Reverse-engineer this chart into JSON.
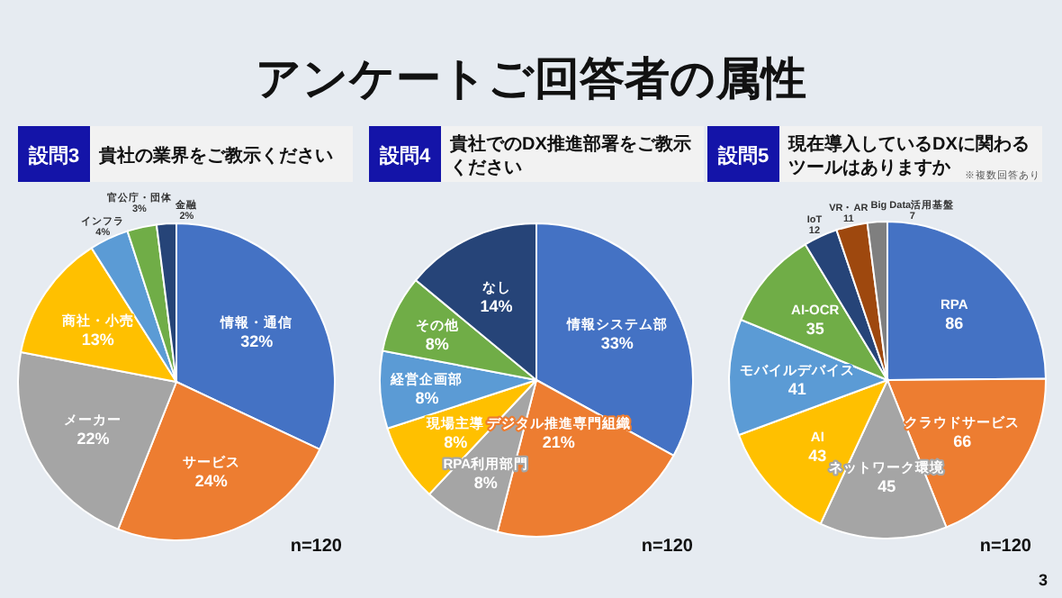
{
  "chart_data": [
    {
      "type": "pie",
      "title": "設問3",
      "subtitle": "貴社の業界をご教示ください",
      "categories": [
        "情報・通信",
        "サービス",
        "メーカー",
        "商社・小売",
        "インフラ",
        "官公庁・団体",
        "金融"
      ],
      "values": [
        32,
        24,
        22,
        13,
        4,
        3,
        2
      ],
      "value_labels": [
        "32%",
        "24%",
        "22%",
        "13%",
        "4%",
        "3%",
        "2%"
      ],
      "colors": [
        "#4472c4",
        "#ed7d31",
        "#a5a5a5",
        "#ffc000",
        "#5b9bd5",
        "#70ad47",
        "#264478"
      ],
      "annotations": [
        "n=120"
      ]
    },
    {
      "type": "pie",
      "title": "設問4",
      "subtitle": "貴社でのDX推進部署をご教示ください",
      "categories": [
        "情報システム部",
        "デジタル推進専門組織",
        "RPA利用部門",
        "現場主導",
        "経営企画部",
        "その他",
        "なし"
      ],
      "values": [
        33,
        21,
        8,
        8,
        8,
        8,
        14
      ],
      "value_labels": [
        "33%",
        "21%",
        "8%",
        "8%",
        "8%",
        "8%",
        "14%"
      ],
      "colors": [
        "#4472c4",
        "#ed7d31",
        "#a5a5a5",
        "#ffc000",
        "#5b9bd5",
        "#70ad47",
        "#264478"
      ],
      "annotations": [
        "n=120"
      ]
    },
    {
      "type": "pie",
      "title": "設問5",
      "subtitle": "現在導入しているDXに関わるツールはありますか",
      "categories": [
        "RPA",
        "クラウドサービス",
        "ネットワーク環境",
        "AI",
        "モバイルデバイス",
        "AI-OCR",
        "IoT",
        "VR・AR",
        "Big Data活用基盤"
      ],
      "values": [
        86,
        66,
        45,
        43,
        41,
        35,
        12,
        11,
        7
      ],
      "data_labels": true,
      "colors": [
        "#4472c4",
        "#ed7d31",
        "#a5a5a5",
        "#ffc000",
        "#5b9bd5",
        "#70ad47",
        "#264478",
        "#9e480e",
        "#7f7f7f"
      ],
      "annotations": [
        "n=120",
        "※複数回答あり"
      ]
    },
    {
      "type": "other",
      "title": "アンケートご回答者の属性",
      "annotations": [
        "3"
      ]
    }
  ]
}
